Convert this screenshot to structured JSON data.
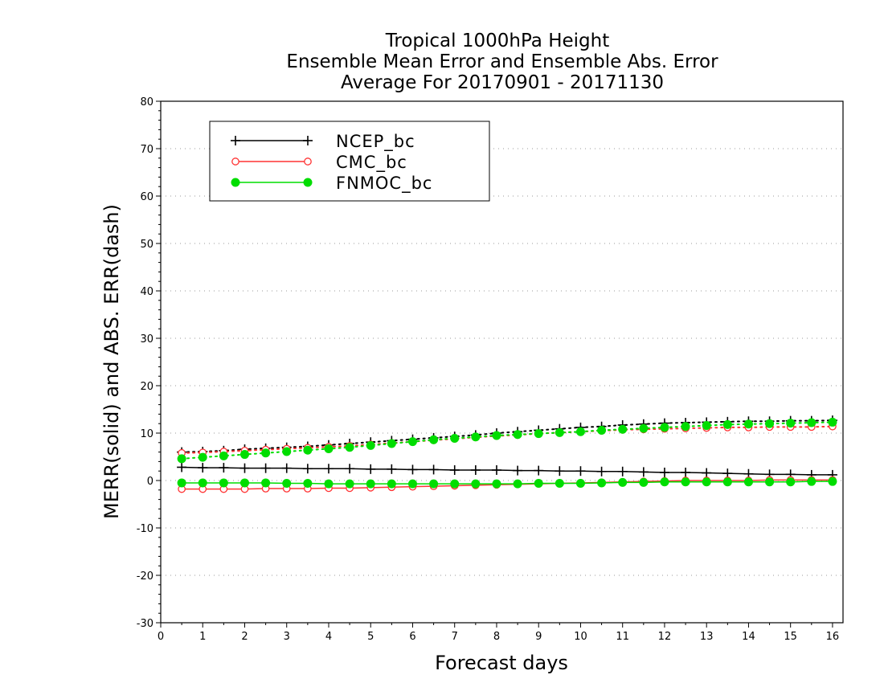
{
  "chart_data": {
    "type": "line",
    "title_lines": [
      "Tropical 1000hPa Height",
      "Ensemble Mean Error and Ensemble Abs. Error",
      "Average For 20170901 - 20171130"
    ],
    "xlabel": "Forecast days",
    "ylabel": "MERR(solid) and ABS. ERR(dash)",
    "xlim": [
      0,
      16.25
    ],
    "ylim": [
      -30,
      80
    ],
    "xticks": [
      0,
      1,
      2,
      3,
      4,
      5,
      6,
      7,
      8,
      9,
      10,
      11,
      12,
      13,
      14,
      15,
      16
    ],
    "yticks": [
      -30,
      -20,
      -10,
      0,
      10,
      20,
      30,
      40,
      50,
      60,
      70,
      80
    ],
    "grid": "horizontal dotted",
    "legend_position": "top-left",
    "x": [
      0.5,
      1,
      1.5,
      2,
      2.5,
      3,
      3.5,
      4,
      4.5,
      5,
      5.5,
      6,
      6.5,
      7,
      7.5,
      8,
      8.5,
      9,
      9.5,
      10,
      10.5,
      11,
      11.5,
      12,
      12.5,
      13,
      13.5,
      14,
      14.5,
      15,
      15.5,
      16
    ],
    "series": [
      {
        "name": "NCEP_bc",
        "color": "#000000",
        "marker": "plus",
        "mean_error": [
          2.8,
          2.7,
          2.7,
          2.6,
          2.6,
          2.6,
          2.5,
          2.5,
          2.5,
          2.4,
          2.4,
          2.3,
          2.3,
          2.2,
          2.2,
          2.2,
          2.1,
          2.1,
          2.0,
          2.0,
          1.9,
          1.9,
          1.8,
          1.7,
          1.7,
          1.6,
          1.5,
          1.4,
          1.3,
          1.3,
          1.2,
          1.2
        ],
        "abs_error": [
          6.0,
          6.1,
          6.3,
          6.6,
          6.8,
          7.0,
          7.2,
          7.5,
          7.8,
          8.1,
          8.4,
          8.7,
          9.0,
          9.3,
          9.6,
          10.0,
          10.3,
          10.6,
          10.9,
          11.2,
          11.4,
          11.7,
          11.9,
          12.1,
          12.2,
          12.3,
          12.4,
          12.5,
          12.5,
          12.6,
          12.6,
          12.7
        ]
      },
      {
        "name": "CMC_bc",
        "color": "#ff3333",
        "marker": "open-circle",
        "mean_error": [
          -1.8,
          -1.8,
          -1.8,
          -1.8,
          -1.7,
          -1.7,
          -1.7,
          -1.6,
          -1.6,
          -1.5,
          -1.4,
          -1.3,
          -1.2,
          -1.1,
          -1.0,
          -0.9,
          -0.8,
          -0.7,
          -0.6,
          -0.5,
          -0.4,
          -0.3,
          -0.2,
          -0.1,
          0.0,
          0.0,
          0.0,
          0.0,
          0.1,
          0.1,
          0.1,
          0.1
        ],
        "abs_error": [
          5.8,
          5.9,
          6.1,
          6.3,
          6.5,
          6.7,
          6.9,
          7.1,
          7.3,
          7.6,
          7.9,
          8.2,
          8.5,
          8.8,
          9.1,
          9.4,
          9.6,
          9.9,
          10.1,
          10.3,
          10.5,
          10.7,
          10.8,
          10.9,
          11.0,
          11.1,
          11.2,
          11.2,
          11.3,
          11.3,
          11.3,
          11.4
        ]
      },
      {
        "name": "FNMOC_bc",
        "color": "#00dd00",
        "marker": "filled-circle",
        "mean_error": [
          -0.5,
          -0.5,
          -0.5,
          -0.5,
          -0.5,
          -0.6,
          -0.6,
          -0.7,
          -0.7,
          -0.7,
          -0.7,
          -0.7,
          -0.7,
          -0.7,
          -0.7,
          -0.7,
          -0.7,
          -0.6,
          -0.6,
          -0.6,
          -0.5,
          -0.4,
          -0.4,
          -0.3,
          -0.3,
          -0.3,
          -0.3,
          -0.3,
          -0.3,
          -0.3,
          -0.2,
          -0.2
        ],
        "abs_error": [
          4.6,
          4.9,
          5.2,
          5.5,
          5.8,
          6.1,
          6.4,
          6.7,
          7.0,
          7.4,
          7.8,
          8.2,
          8.6,
          8.9,
          9.2,
          9.5,
          9.7,
          9.9,
          10.1,
          10.3,
          10.6,
          10.8,
          11.0,
          11.2,
          11.4,
          11.6,
          11.8,
          11.9,
          12.0,
          12.1,
          12.2,
          12.3
        ]
      }
    ]
  }
}
